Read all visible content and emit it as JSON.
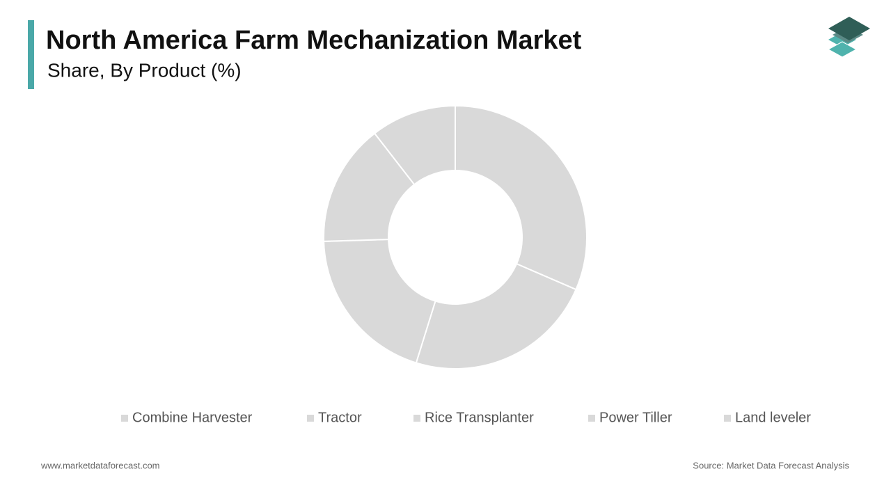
{
  "chart_data": {
    "type": "donut",
    "title": "North America Farm Mechanization Market",
    "subtitle": "Share, By Product (%)",
    "categories": [
      "Combine Harvester",
      "Tractor",
      "Rice Transplanter",
      "Power Tiller",
      "Land leveler"
    ],
    "values": [
      31.5,
      23.3,
      19.7,
      15,
      10.5
    ],
    "color": "#d9d9d9"
  },
  "footer": {
    "website": "www.marketdataforecast.com",
    "source": "Source: Market Data Forecast Analysis"
  }
}
